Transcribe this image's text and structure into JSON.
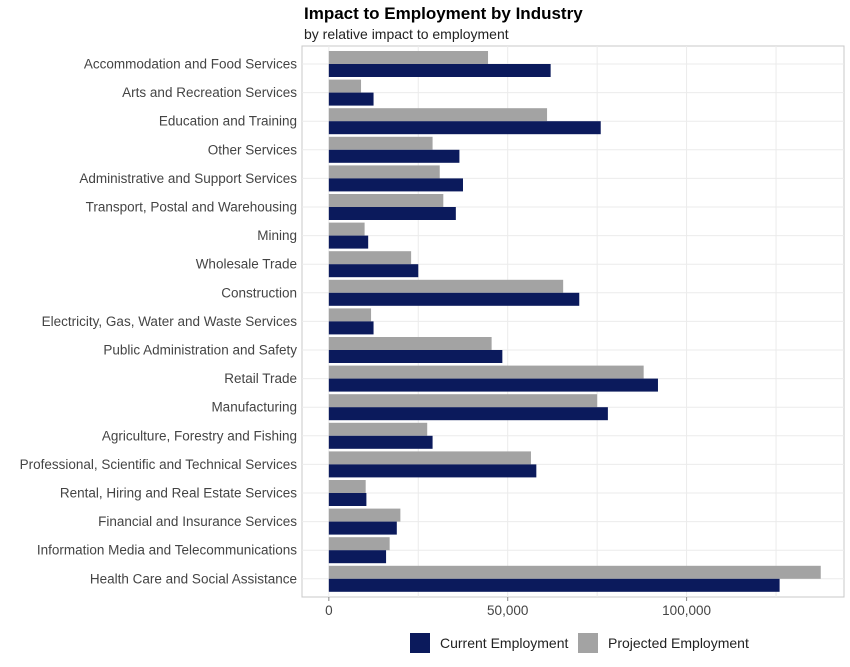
{
  "chart_data": {
    "type": "bar",
    "orientation": "horizontal",
    "title": "Impact to Employment by Industry",
    "subtitle": "by relative impact to employment",
    "xlabel": "",
    "ylabel": "",
    "xlim": [
      -7500,
      144000
    ],
    "x_ticks": [
      0,
      50000,
      100000
    ],
    "x_tick_labels": [
      "0",
      "50,000",
      "100,000"
    ],
    "grid": true,
    "legend_position": "bottom",
    "categories": [
      "Accommodation and Food Services",
      "Arts and Recreation Services",
      "Education and Training",
      "Other Services",
      "Administrative and Support Services",
      "Transport, Postal and Warehousing",
      "Mining",
      "Wholesale Trade",
      "Construction",
      "Electricity, Gas, Water and Waste Services",
      "Public Administration and Safety",
      "Retail Trade",
      "Manufacturing",
      "Agriculture, Forestry and Fishing",
      "Professional, Scientific and Technical Services",
      "Rental, Hiring and Real Estate Services",
      "Financial and Insurance Services",
      "Information Media and Telecommunications",
      "Health Care and Social Assistance"
    ],
    "series": [
      {
        "name": "Current Employment",
        "color": "#0b1a5c",
        "values": [
          62000,
          12500,
          76000,
          36500,
          37500,
          35500,
          11000,
          25000,
          70000,
          12500,
          48500,
          92000,
          78000,
          29000,
          58000,
          10500,
          19000,
          16000,
          126000
        ]
      },
      {
        "name": "Projected Employment",
        "color": "#a3a3a3",
        "values": [
          44500,
          9000,
          61000,
          29000,
          31000,
          32000,
          10000,
          23000,
          65500,
          11800,
          45500,
          88000,
          75000,
          27500,
          56500,
          10300,
          20000,
          17000,
          137500
        ]
      }
    ]
  }
}
